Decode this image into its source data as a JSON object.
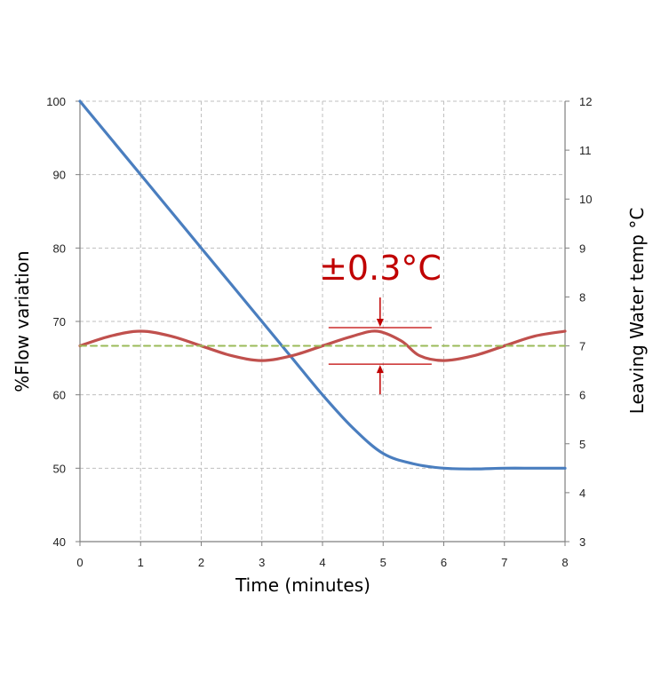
{
  "chart_data": {
    "type": "line",
    "xlabel": "Time (minutes)",
    "ylabel": "%Flow variation",
    "y2label": "Leaving Water temp °C",
    "xlim": [
      0,
      8
    ],
    "ylim": [
      40,
      100
    ],
    "y2lim": [
      3,
      12
    ],
    "x_ticks": [
      "0",
      "1",
      "2",
      "3",
      "4",
      "5",
      "6",
      "7",
      "8"
    ],
    "y_ticks": [
      "40",
      "50",
      "60",
      "70",
      "80",
      "90",
      "100"
    ],
    "y2_ticks": [
      "3",
      "4",
      "5",
      "6",
      "7",
      "8",
      "9",
      "10",
      "11",
      "12"
    ],
    "grid": true,
    "series": [
      {
        "axis": "left",
        "color": "#4a7ebf",
        "x": [
          0,
          1,
          2,
          3,
          3.5,
          4,
          4.5,
          5,
          5.5,
          6,
          6.5,
          7,
          7.5,
          8
        ],
        "y": [
          100,
          90,
          80,
          70,
          65,
          60,
          55.5,
          52,
          50.6,
          50,
          49.9,
          50,
          50,
          50
        ]
      },
      {
        "axis": "right",
        "color": "#c0504d",
        "x": [
          0,
          0.5,
          1,
          1.5,
          2,
          2.5,
          3,
          3.5,
          4,
          4.5,
          4.9,
          5.3,
          5.6,
          6,
          6.5,
          7,
          7.5,
          8
        ],
        "y": [
          7,
          7.2,
          7.3,
          7.2,
          7,
          6.8,
          6.7,
          6.8,
          7,
          7.2,
          7.3,
          7.1,
          6.8,
          6.7,
          6.8,
          7,
          7.2,
          7.3
        ]
      },
      {
        "axis": "right",
        "color": "#9bbb59",
        "style": "dashed",
        "x": [
          0,
          8
        ],
        "y": [
          7,
          7
        ]
      }
    ],
    "annotation": {
      "text": "±0.3°C",
      "color": "#c00000",
      "x_range": [
        4.1,
        5.8
      ],
      "upper": 7.3,
      "lower": 6.7
    }
  }
}
